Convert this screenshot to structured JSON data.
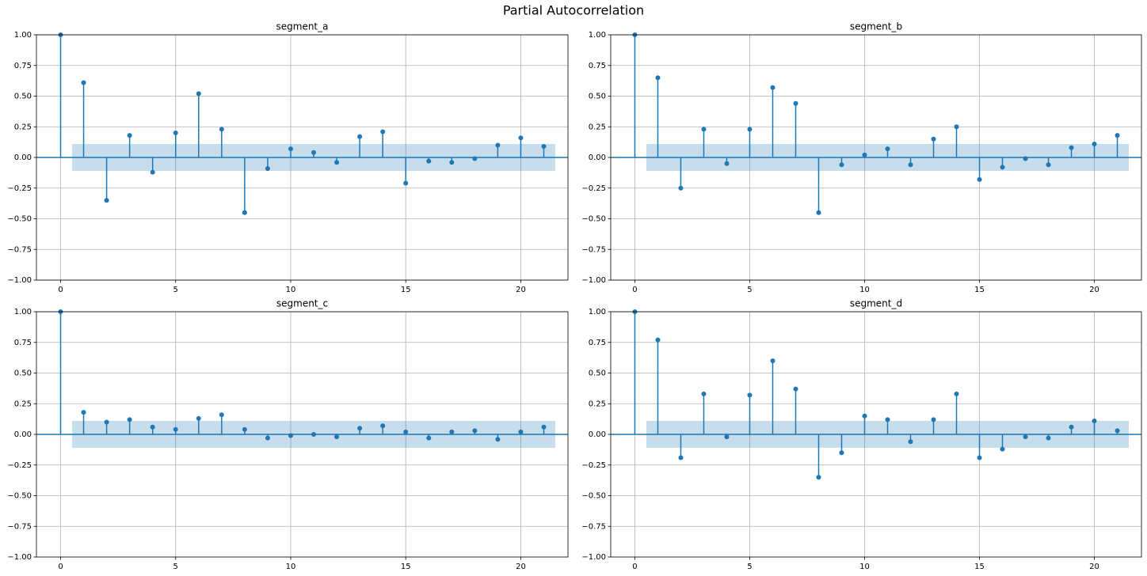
{
  "title": "Partial Autocorrelation",
  "chart_data": [
    {
      "type": "stem",
      "title": "segment_a",
      "color": "#1f77b4",
      "x": [
        0,
        1,
        2,
        3,
        4,
        5,
        6,
        7,
        8,
        9,
        10,
        11,
        12,
        13,
        14,
        15,
        16,
        17,
        18,
        19,
        20,
        21
      ],
      "values": [
        1.0,
        0.61,
        -0.35,
        0.18,
        -0.12,
        0.2,
        0.52,
        0.23,
        -0.45,
        -0.09,
        0.07,
        0.04,
        -0.04,
        0.17,
        0.21,
        -0.21,
        -0.03,
        -0.04,
        -0.01,
        0.1,
        0.16,
        0.09
      ],
      "confint": [
        -0.11,
        0.11
      ],
      "xlim": [
        -1.05,
        22.05
      ],
      "xticks": [
        0,
        5,
        10,
        15,
        20
      ],
      "ylim": [
        -1,
        1
      ],
      "yticks": [
        {
          "value": -1,
          "label": "−1.00"
        },
        {
          "value": -0.75,
          "label": "−0.75"
        },
        {
          "value": -0.5,
          "label": "−0.50"
        },
        {
          "value": -0.25,
          "label": "−0.25"
        },
        {
          "value": 0,
          "label": "0.00"
        },
        {
          "value": 0.25,
          "label": "0.25"
        },
        {
          "value": 0.5,
          "label": "0.50"
        },
        {
          "value": 0.75,
          "label": "0.75"
        },
        {
          "value": 1,
          "label": "1.00"
        }
      ],
      "grid": true
    },
    {
      "type": "stem",
      "title": "segment_b",
      "color": "#1f77b4",
      "x": [
        0,
        1,
        2,
        3,
        4,
        5,
        6,
        7,
        8,
        9,
        10,
        11,
        12,
        13,
        14,
        15,
        16,
        17,
        18,
        19,
        20,
        21
      ],
      "values": [
        1.0,
        0.65,
        -0.25,
        0.23,
        -0.05,
        0.23,
        0.57,
        0.44,
        -0.45,
        -0.06,
        0.02,
        0.07,
        -0.06,
        0.15,
        0.25,
        -0.18,
        -0.08,
        -0.01,
        -0.06,
        0.08,
        0.11,
        0.18
      ],
      "confint": [
        -0.11,
        0.11
      ],
      "xlim": [
        -1.05,
        22.05
      ],
      "xticks": [
        0,
        5,
        10,
        15,
        20
      ],
      "ylim": [
        -1,
        1
      ],
      "yticks": [
        {
          "value": -1,
          "label": "−1.00"
        },
        {
          "value": -0.75,
          "label": "−0.75"
        },
        {
          "value": -0.5,
          "label": "−0.50"
        },
        {
          "value": -0.25,
          "label": "−0.25"
        },
        {
          "value": 0,
          "label": "0.00"
        },
        {
          "value": 0.25,
          "label": "0.25"
        },
        {
          "value": 0.5,
          "label": "0.50"
        },
        {
          "value": 0.75,
          "label": "0.75"
        },
        {
          "value": 1,
          "label": "1.00"
        }
      ],
      "grid": true
    },
    {
      "type": "stem",
      "title": "segment_c",
      "color": "#1f77b4",
      "x": [
        0,
        1,
        2,
        3,
        4,
        5,
        6,
        7,
        8,
        9,
        10,
        11,
        12,
        13,
        14,
        15,
        16,
        17,
        18,
        19,
        20,
        21
      ],
      "values": [
        1.0,
        0.18,
        0.1,
        0.12,
        0.06,
        0.04,
        0.13,
        0.16,
        0.04,
        -0.03,
        -0.01,
        0.0,
        -0.02,
        0.05,
        0.07,
        0.02,
        -0.03,
        0.02,
        0.03,
        -0.04,
        0.02,
        0.06
      ],
      "confint": [
        -0.11,
        0.11
      ],
      "xlim": [
        -1.05,
        22.05
      ],
      "xticks": [
        0,
        5,
        10,
        15,
        20
      ],
      "ylim": [
        -1,
        1
      ],
      "yticks": [
        {
          "value": -1,
          "label": "−1.00"
        },
        {
          "value": -0.75,
          "label": "−0.75"
        },
        {
          "value": -0.5,
          "label": "−0.50"
        },
        {
          "value": -0.25,
          "label": "−0.25"
        },
        {
          "value": 0,
          "label": "0.00"
        },
        {
          "value": 0.25,
          "label": "0.25"
        },
        {
          "value": 0.5,
          "label": "0.50"
        },
        {
          "value": 0.75,
          "label": "0.75"
        },
        {
          "value": 1,
          "label": "1.00"
        }
      ],
      "grid": true
    },
    {
      "type": "stem",
      "title": "segment_d",
      "color": "#1f77b4",
      "x": [
        0,
        1,
        2,
        3,
        4,
        5,
        6,
        7,
        8,
        9,
        10,
        11,
        12,
        13,
        14,
        15,
        16,
        17,
        18,
        19,
        20,
        21
      ],
      "values": [
        1.0,
        0.77,
        -0.19,
        0.33,
        -0.02,
        0.32,
        0.6,
        0.37,
        -0.35,
        -0.15,
        0.15,
        0.12,
        -0.06,
        0.12,
        0.33,
        -0.19,
        -0.12,
        -0.02,
        -0.03,
        0.06,
        0.11,
        0.03
      ],
      "confint": [
        -0.11,
        0.11
      ],
      "xlim": [
        -1.05,
        22.05
      ],
      "xticks": [
        0,
        5,
        10,
        15,
        20
      ],
      "ylim": [
        -1,
        1
      ],
      "yticks": [
        {
          "value": -1,
          "label": "−1.00"
        },
        {
          "value": -0.75,
          "label": "−0.75"
        },
        {
          "value": -0.5,
          "label": "−0.50"
        },
        {
          "value": -0.25,
          "label": "−0.25"
        },
        {
          "value": 0,
          "label": "0.00"
        },
        {
          "value": 0.25,
          "label": "0.25"
        },
        {
          "value": 0.5,
          "label": "0.50"
        },
        {
          "value": 0.75,
          "label": "0.75"
        },
        {
          "value": 1,
          "label": "1.00"
        }
      ],
      "grid": true
    }
  ]
}
